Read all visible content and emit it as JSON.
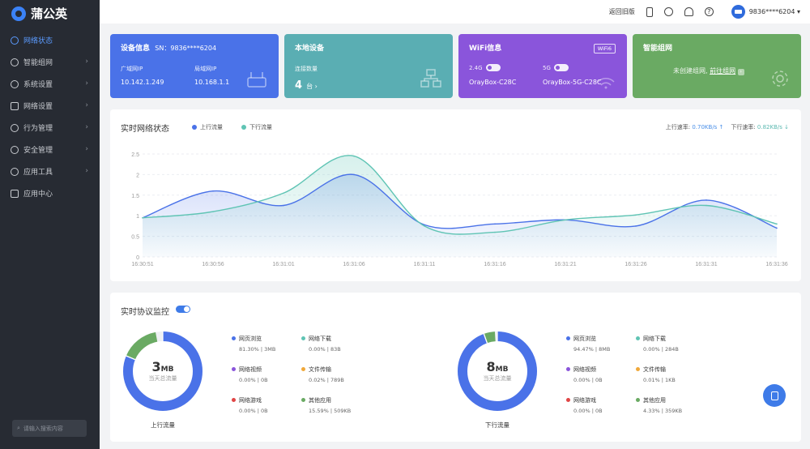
{
  "app": {
    "name": "蒲公英"
  },
  "sidebar": {
    "items": [
      {
        "label": "网络状态",
        "active": true,
        "arrow": ""
      },
      {
        "label": "智能组网",
        "arrow": "›"
      },
      {
        "label": "系统设置",
        "arrow": "›"
      },
      {
        "label": "网络设置",
        "arrow": "›"
      },
      {
        "label": "行为管理",
        "arrow": "›"
      },
      {
        "label": "安全管理",
        "arrow": "›"
      },
      {
        "label": "应用工具",
        "arrow": "›"
      },
      {
        "label": "应用中心",
        "arrow": ""
      }
    ],
    "search_placeholder": "请输入搜索内容"
  },
  "topbar": {
    "old_version": "返回旧版",
    "account": "9836****6204 ▾"
  },
  "cards": {
    "device": {
      "title": "设备信息",
      "sn": "SN：9836****6204",
      "wan_label": "广域网IP",
      "wan_ip": "10.142.1.249",
      "lan_label": "局域网IP",
      "lan_ip": "10.168.1.1"
    },
    "local": {
      "title": "本地设备",
      "conn_label": "连接数量",
      "count": "4",
      "unit": "台 ›"
    },
    "wifi": {
      "title": "WiFi信息",
      "badge": "WiFi6",
      "band1": "2.4G",
      "band2": "5G",
      "ssid1": "OrayBox-C28C",
      "ssid2": "OrayBox-5G-C28C"
    },
    "smart": {
      "title": "智能组网",
      "text": "未创建组网,",
      "link": "前往组网"
    }
  },
  "realtime": {
    "title": "实时网络状态",
    "legend_up": "上行流量",
    "legend_down": "下行流量",
    "up_rate_label": "上行速率:",
    "up_rate": "0.70KB/s ↑",
    "down_rate_label": "下行速率:",
    "down_rate": "0.82KB/s ↓"
  },
  "chart_data": {
    "type": "line",
    "title": "实时网络状态",
    "x": [
      "16:30:51",
      "16:30:56",
      "16:31:01",
      "16:31:06",
      "16:31:11",
      "16:31:16",
      "16:31:21",
      "16:31:26",
      "16:31:31",
      "16:31:36"
    ],
    "ylim": [
      0,
      2.5
    ],
    "yticks": [
      "0",
      "0.5",
      "1",
      "1.5",
      "2",
      "2.5"
    ],
    "series": [
      {
        "name": "上行流量",
        "color": "#4a72e8",
        "values": [
          0.95,
          1.6,
          1.25,
          2.0,
          0.78,
          0.8,
          0.9,
          0.75,
          1.38,
          0.7
        ]
      },
      {
        "name": "下行流量",
        "color": "#5fc4b4",
        "values": [
          0.95,
          1.1,
          1.55,
          2.45,
          0.75,
          0.6,
          0.9,
          1.02,
          1.25,
          0.8
        ]
      }
    ]
  },
  "protocol": {
    "title": "实时协议监控",
    "up": {
      "total": "3",
      "unit": "MB",
      "sub": "当天总流量",
      "label": "上行流量",
      "items": [
        {
          "name": "网页浏览",
          "color": "#4a72e8",
          "value": "81.30%  |  3MB"
        },
        {
          "name": "网络下载",
          "color": "#5fc4b4",
          "value": "0.00%  |  83B"
        },
        {
          "name": "网络视频",
          "color": "#8a55db",
          "value": "0.00%  |  0B"
        },
        {
          "name": "文件传输",
          "color": "#f0a83a",
          "value": "0.02%  |  789B"
        },
        {
          "name": "网络游戏",
          "color": "#e04545",
          "value": "0.00%  |  0B"
        },
        {
          "name": "其他应用",
          "color": "#6aaa63",
          "value": "15.59%  |  509KB"
        }
      ],
      "pcts": [
        81.3,
        0,
        0,
        0.02,
        0,
        15.59
      ]
    },
    "down": {
      "total": "8",
      "unit": "MB",
      "sub": "当天总流量",
      "label": "下行流量",
      "items": [
        {
          "name": "网页浏览",
          "color": "#4a72e8",
          "value": "94.47%  |  8MB"
        },
        {
          "name": "网络下载",
          "color": "#5fc4b4",
          "value": "0.00%  |  284B"
        },
        {
          "name": "网络视频",
          "color": "#8a55db",
          "value": "0.00%  |  0B"
        },
        {
          "name": "文件传输",
          "color": "#f0a83a",
          "value": "0.01%  |  1KB"
        },
        {
          "name": "网络游戏",
          "color": "#e04545",
          "value": "0.00%  |  0B"
        },
        {
          "name": "其他应用",
          "color": "#6aaa63",
          "value": "4.33%  |  359KB"
        }
      ],
      "pcts": [
        94.47,
        0,
        0,
        0.01,
        0,
        4.33
      ]
    }
  }
}
